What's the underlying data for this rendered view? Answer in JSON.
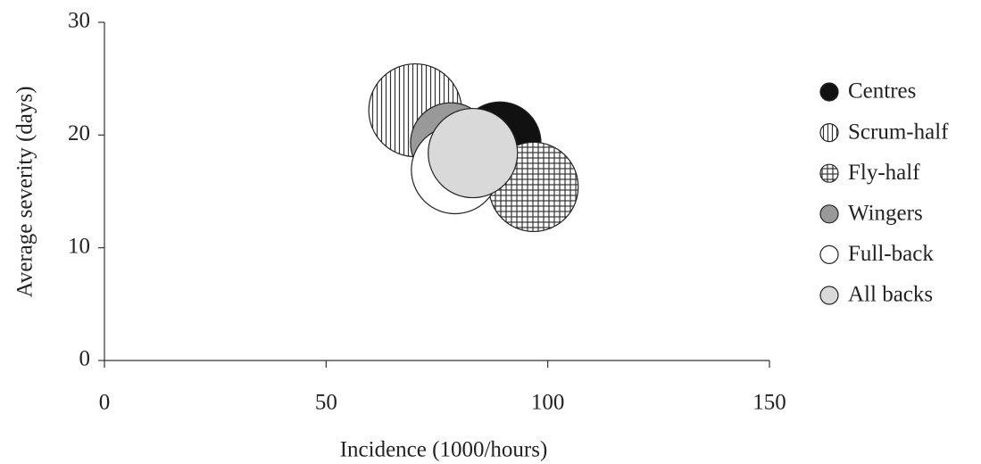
{
  "chart_data": {
    "type": "bubble",
    "xlabel": "Incidence (1000/hours)",
    "ylabel": "Average severity (days)",
    "xlim": [
      0,
      150
    ],
    "xticks": [
      0,
      50,
      100,
      150
    ],
    "ylim": [
      0,
      30
    ],
    "yticks": [
      0,
      10,
      20,
      30
    ],
    "legend": "right",
    "series": [
      {
        "name": "Centres",
        "color": "#111111",
        "x": [
          89.2
        ],
        "values": [
          19.3
        ],
        "sizes": [
          46
        ]
      },
      {
        "name": "Scrum-half",
        "color": "#ffffff",
        "pattern": "vertical-lines",
        "x": [
          70.1
        ],
        "values": [
          22.2
        ],
        "sizes": [
          52
        ]
      },
      {
        "name": "Fly-half",
        "color": "#ffffff",
        "pattern": "grid",
        "x": [
          96.8
        ],
        "values": [
          15.4
        ],
        "sizes": [
          50
        ]
      },
      {
        "name": "Wingers",
        "color": "#999999",
        "x": [
          78.1
        ],
        "values": [
          19.3
        ],
        "sizes": [
          45
        ]
      },
      {
        "name": "Full-back",
        "color": "#ffffff",
        "x": [
          79.1
        ],
        "values": [
          16.9
        ],
        "sizes": [
          49
        ]
      },
      {
        "name": "All backs",
        "color": "#d9d9d9",
        "x": [
          83.1
        ],
        "values": [
          18.4
        ],
        "sizes": [
          50
        ]
      }
    ]
  }
}
